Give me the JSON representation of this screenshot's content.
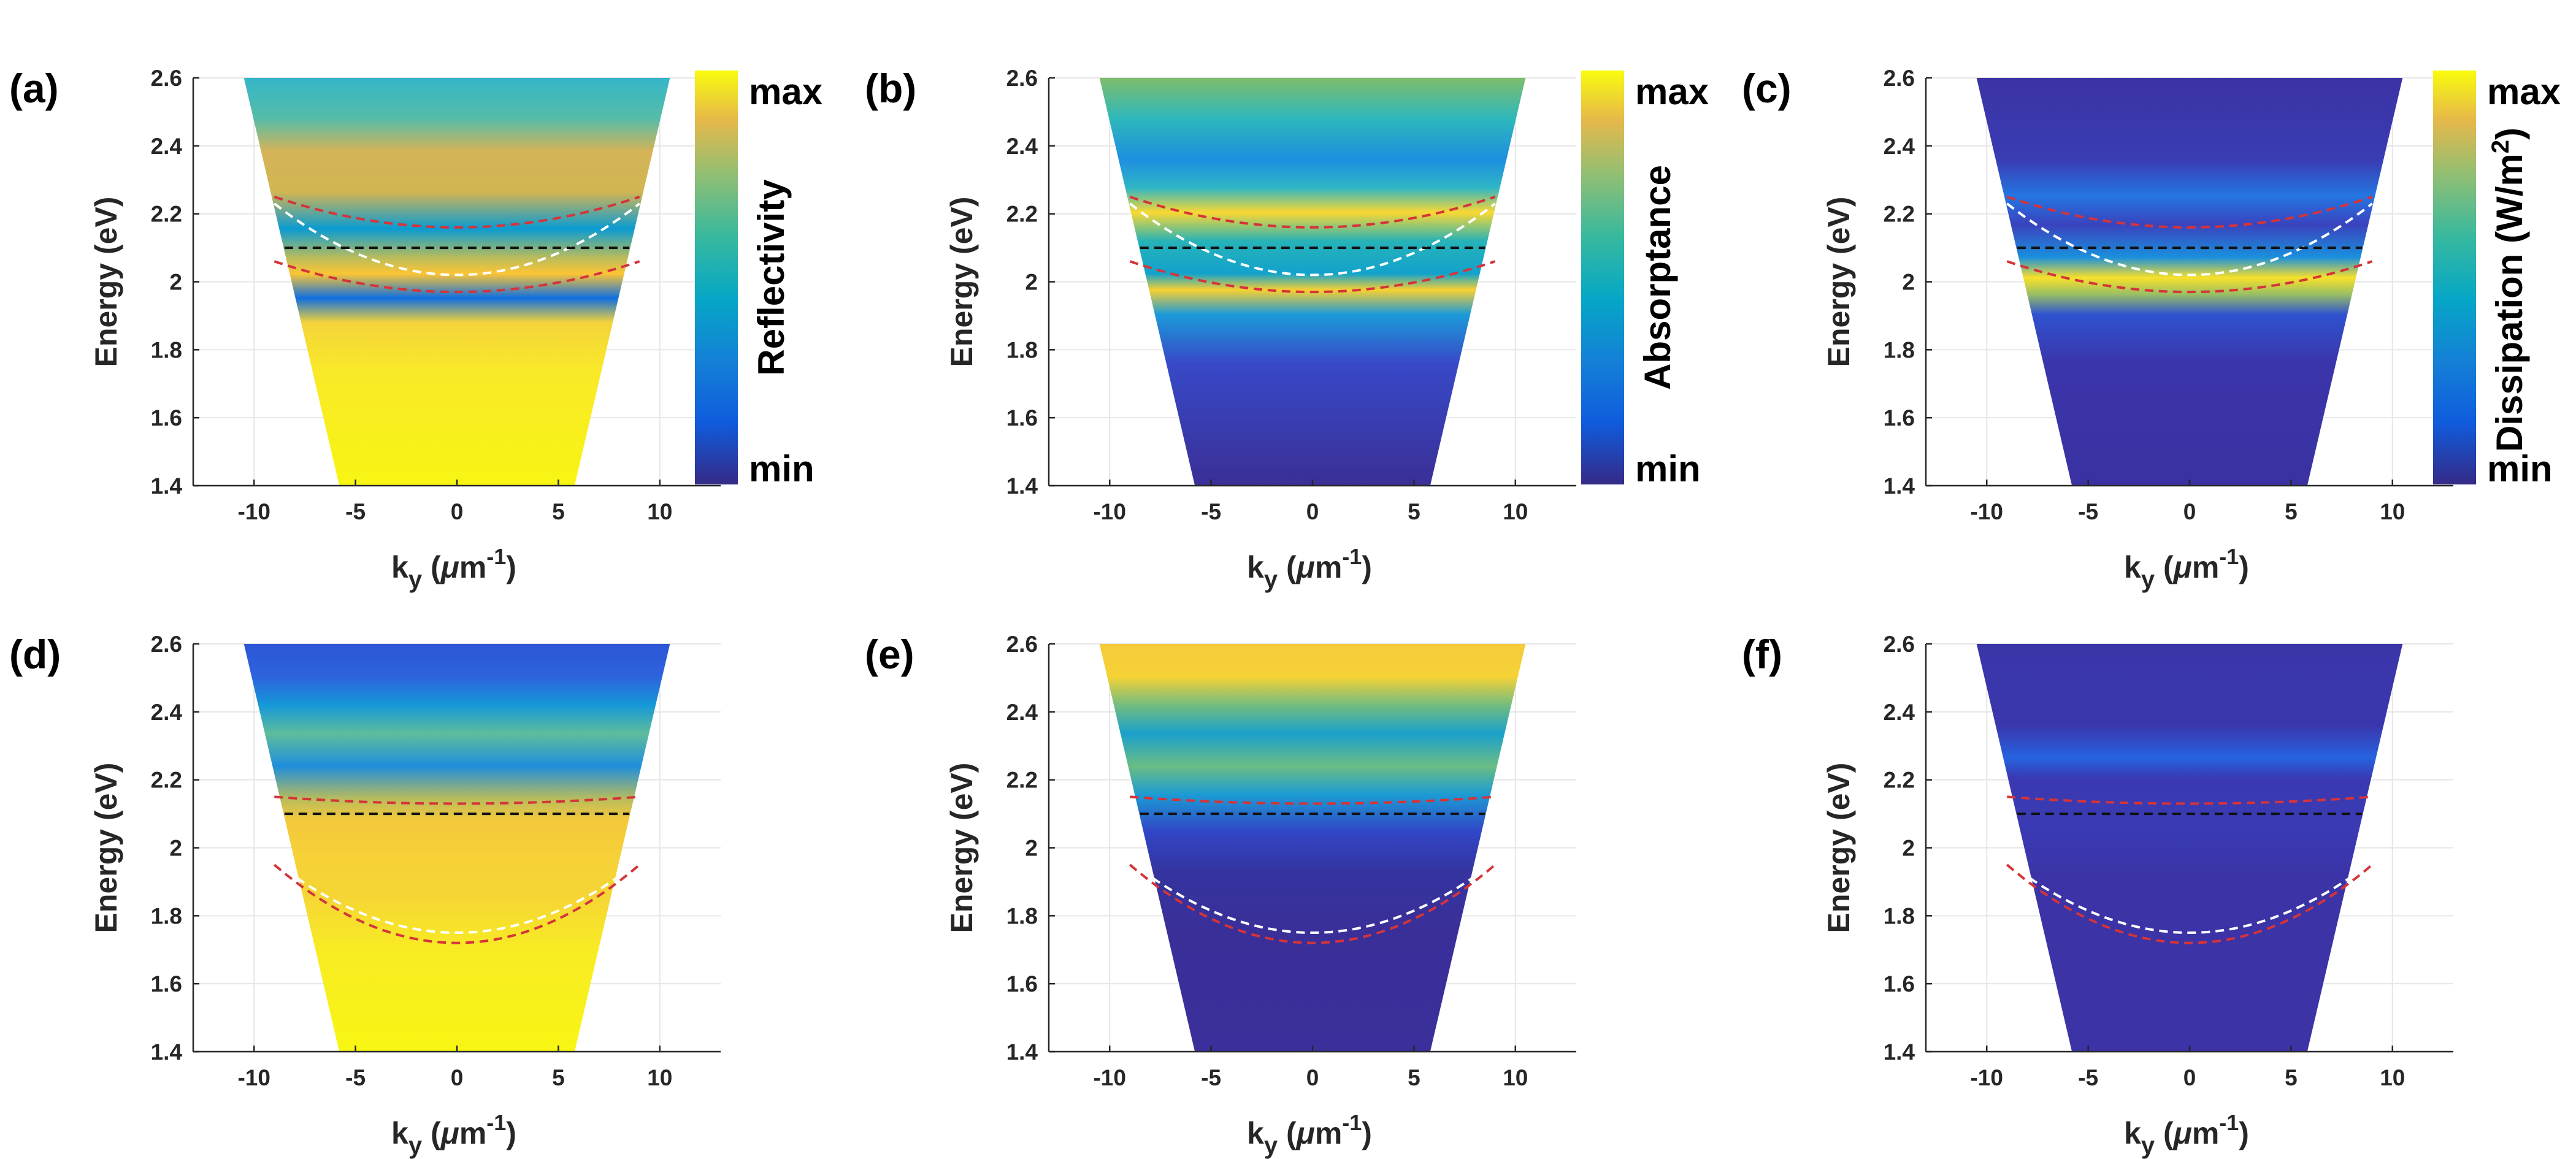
{
  "figure": {
    "energy_label": "Energy (eV)",
    "ky_label_main": "k",
    "ky_label_sub": "y",
    "ky_label_unit_open": " (",
    "ky_label_mu": "μ",
    "ky_label_m": "m",
    "ky_label_exp": "-1",
    "ky_label_close": ")"
  },
  "colorbars": {
    "max_label": "max",
    "min_label": "min",
    "reflectivity": "Reflectivity",
    "absorptance": "Absorptance",
    "dissipation": "Dissipation (W/m",
    "dissipation_sup": "2",
    "dissipation_close": ")"
  },
  "chart_data": [
    {
      "panel": "(a)",
      "type": "heatmap",
      "quantity": "Reflectivity",
      "xlabel": "k_y (μm^-1)",
      "ylabel": "Energy (eV)",
      "xlim": [
        -13,
        13
      ],
      "ylim": [
        1.4,
        2.6
      ],
      "xticks": [
        -10,
        -5,
        0,
        5,
        10
      ],
      "yticks": [
        1.4,
        1.6,
        1.8,
        2,
        2.2,
        2.4,
        2.6
      ],
      "cone_k_at_top": 10.5,
      "cone_k_at_bottom": 5.8,
      "dashed_lines": {
        "black_flat_E": 2.1,
        "red_upper": {
          "E0": 2.16,
          "E_edge": 2.25
        },
        "red_lower": {
          "E0": 1.97,
          "E_edge": 2.06
        },
        "white_parabola": {
          "E0": 2.02,
          "E_edge": 2.23
        }
      }
    },
    {
      "panel": "(b)",
      "type": "heatmap",
      "quantity": "Absorptance",
      "xlabel": "k_y (μm^-1)",
      "ylabel": "Energy (eV)",
      "xlim": [
        -13,
        13
      ],
      "ylim": [
        1.4,
        2.6
      ],
      "xticks": [
        -10,
        -5,
        0,
        5,
        10
      ],
      "yticks": [
        1.4,
        1.6,
        1.8,
        2,
        2.2,
        2.4,
        2.6
      ],
      "cone_k_at_top": 10.5,
      "cone_k_at_bottom": 5.8,
      "dashed_lines": {
        "black_flat_E": 2.1,
        "red_upper": {
          "E0": 2.16,
          "E_edge": 2.25
        },
        "red_lower": {
          "E0": 1.97,
          "E_edge": 2.06
        },
        "white_parabola": {
          "E0": 2.02,
          "E_edge": 2.23
        }
      }
    },
    {
      "panel": "(c)",
      "type": "heatmap",
      "quantity": "Dissipation (W/m^2)",
      "xlabel": "k_y (μm^-1)",
      "ylabel": "Energy (eV)",
      "xlim": [
        -13,
        13
      ],
      "ylim": [
        1.4,
        2.6
      ],
      "xticks": [
        -10,
        -5,
        0,
        5,
        10
      ],
      "yticks": [
        1.4,
        1.6,
        1.8,
        2,
        2.2,
        2.4,
        2.6
      ],
      "cone_k_at_top": 10.5,
      "cone_k_at_bottom": 5.8,
      "dashed_lines": {
        "black_flat_E": 2.1,
        "red_upper": {
          "E0": 2.16,
          "E_edge": 2.25
        },
        "red_lower": {
          "E0": 1.97,
          "E_edge": 2.06
        },
        "white_parabola": {
          "E0": 2.02,
          "E_edge": 2.23
        }
      }
    },
    {
      "panel": "(d)",
      "type": "heatmap",
      "quantity": "Reflectivity",
      "xlabel": "k_y (μm^-1)",
      "ylabel": "Energy (eV)",
      "xlim": [
        -13,
        13
      ],
      "ylim": [
        1.4,
        2.6
      ],
      "xticks": [
        -10,
        -5,
        0,
        5,
        10
      ],
      "yticks": [
        1.4,
        1.6,
        1.8,
        2,
        2.2,
        2.4,
        2.6
      ],
      "cone_k_at_top": 10.5,
      "cone_k_at_bottom": 5.8,
      "dashed_lines": {
        "black_flat_E": 2.1,
        "red_upper": {
          "E0": 2.13,
          "E_edge": 2.15
        },
        "red_lower": {
          "E0": 1.72,
          "E_edge": 1.95
        },
        "white_parabola": {
          "E0": 1.75,
          "E_edge": 1.96
        }
      }
    },
    {
      "panel": "(e)",
      "type": "heatmap",
      "quantity": "Absorptance",
      "xlabel": "k_y (μm^-1)",
      "ylabel": "Energy (eV)",
      "xlim": [
        -13,
        13
      ],
      "ylim": [
        1.4,
        2.6
      ],
      "xticks": [
        -10,
        -5,
        0,
        5,
        10
      ],
      "yticks": [
        1.4,
        1.6,
        1.8,
        2,
        2.2,
        2.4,
        2.6
      ],
      "cone_k_at_top": 10.5,
      "cone_k_at_bottom": 5.8,
      "dashed_lines": {
        "black_flat_E": 2.1,
        "red_upper": {
          "E0": 2.13,
          "E_edge": 2.15
        },
        "red_lower": {
          "E0": 1.72,
          "E_edge": 1.95
        },
        "white_parabola": {
          "E0": 1.75,
          "E_edge": 1.96
        }
      }
    },
    {
      "panel": "(f)",
      "type": "heatmap",
      "quantity": "Dissipation (W/m^2)",
      "xlabel": "k_y (μm^-1)",
      "ylabel": "Energy (eV)",
      "xlim": [
        -13,
        13
      ],
      "ylim": [
        1.4,
        2.6
      ],
      "xticks": [
        -10,
        -5,
        0,
        5,
        10
      ],
      "yticks": [
        1.4,
        1.6,
        1.8,
        2,
        2.2,
        2.4,
        2.6
      ],
      "cone_k_at_top": 10.5,
      "cone_k_at_bottom": 5.8,
      "dashed_lines": {
        "black_flat_E": 2.1,
        "red_upper": {
          "E0": 2.13,
          "E_edge": 2.15
        },
        "red_lower": {
          "E0": 1.72,
          "E_edge": 1.95
        },
        "white_parabola": {
          "E0": 1.75,
          "E_edge": 1.96
        }
      }
    }
  ]
}
